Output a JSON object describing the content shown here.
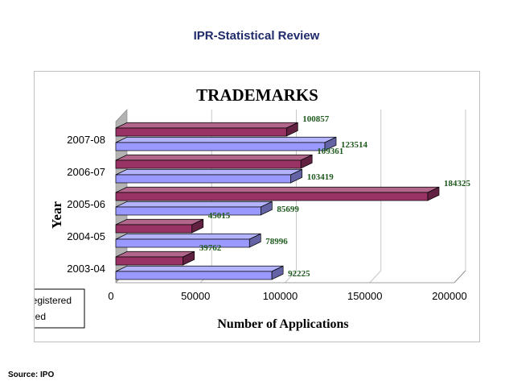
{
  "page": {
    "title": "IPR-Statistical Review",
    "source": "Source: IPO"
  },
  "chart_data": {
    "type": "bar",
    "orientation": "horizontal",
    "title": "TRADEMARKS",
    "xlabel": "Number of Applications",
    "ylabel": "Year",
    "categories": [
      "2003-04",
      "2004-05",
      "2005-06",
      "2006-07",
      "2007-08"
    ],
    "series": [
      {
        "name": "Registered",
        "values": [
          39762,
          45015,
          184325,
          109361,
          100857
        ],
        "color": "#993366"
      },
      {
        "name": "Filed",
        "values": [
          92225,
          78996,
          85699,
          103419,
          123514
        ],
        "color": "#9999ff"
      }
    ],
    "xlim": [
      0,
      200000
    ],
    "xticks": [
      "0",
      "50000",
      "100000",
      "150000",
      "200000"
    ],
    "grid": true,
    "legend_position": "bottom-left",
    "label_color": "#1e5a1e"
  }
}
